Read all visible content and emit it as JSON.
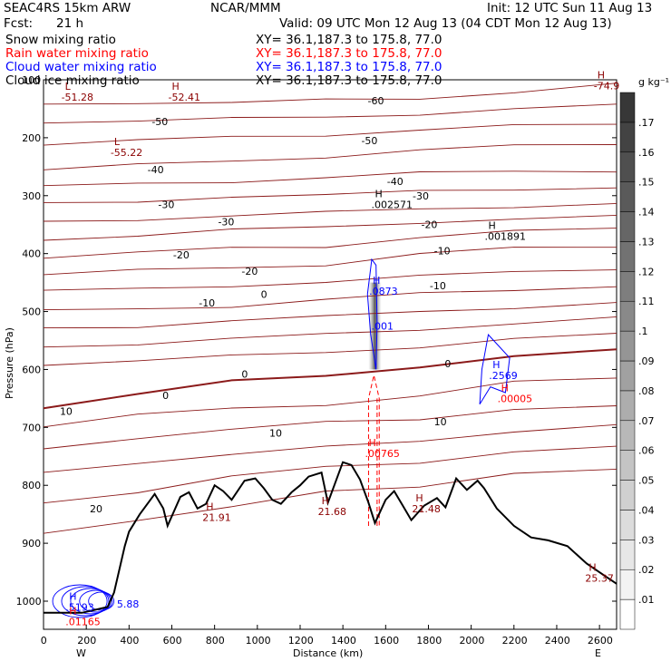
{
  "header": {
    "model": "SEAC4RS 15km ARW",
    "center": "NCAR/MMM",
    "init": "Init: 12 UTC Sun 11 Aug 13",
    "fcst_label": "Fcst:",
    "fcst_value": "21 h",
    "valid": "Valid: 09 UTC Mon 12 Aug 13 (04 CDT Mon 12 Aug 13)",
    "fields": [
      {
        "name": "Snow mixing ratio",
        "xy": "XY=   36.1,187.3 to 175.8, 77.0",
        "color": "#000000"
      },
      {
        "name": "Rain water mixing ratio",
        "xy": "XY=   36.1,187.3 to 175.8, 77.0",
        "color": "#ff0000"
      },
      {
        "name": "Cloud water mixing ratio",
        "xy": "XY=   36.1,187.3 to 175.8, 77.0",
        "color": "#0000ff"
      },
      {
        "name": "Cloud ice mixing ratio",
        "xy": "XY=   36.1,187.3 to 175.8, 77.0",
        "color": "#000000"
      }
    ]
  },
  "colorbar": {
    "unit": "g kg⁻¹",
    "ticks": [
      ".01",
      ".02",
      ".03",
      ".04",
      ".05",
      ".06",
      ".07",
      ".08",
      ".09",
      ".1",
      ".11",
      ".12",
      ".13",
      ".14",
      ".15",
      ".16",
      ".17"
    ]
  },
  "chart_data": {
    "type": "contour-cross-section",
    "xlabel": "Distance (km)",
    "ylabel": "Pressure (hPa)",
    "xlim": [
      0,
      2680
    ],
    "ylim": [
      1050,
      100
    ],
    "x_ticks": [
      "0",
      "200",
      "400",
      "600",
      "800",
      "1000",
      "1200",
      "1400",
      "1600",
      "1800",
      "2000",
      "2200",
      "2400",
      "2600"
    ],
    "y_ticks": [
      "100",
      "200",
      "300",
      "400",
      "500",
      "600",
      "700",
      "800",
      "900",
      "1000"
    ],
    "end_labels": {
      "left": "W",
      "right": "E"
    },
    "temperature_contour_labels": [
      "-60",
      "-50",
      "-50",
      "-40",
      "-40",
      "-30",
      "-30",
      "-30",
      "-20",
      "-20",
      "-20",
      "-10",
      "-10",
      "-10",
      "0",
      "0",
      "0",
      "0",
      "10",
      "10",
      "10",
      "20"
    ],
    "extrema": [
      {
        "sym": "H",
        "value": "-74.9",
        "x": 2590,
        "p": 110,
        "color": "#8b0000"
      },
      {
        "sym": "L",
        "value": "-51.28",
        "x": 100,
        "p": 130,
        "color": "#8b0000"
      },
      {
        "sym": "H",
        "value": "-52.41",
        "x": 600,
        "p": 130,
        "color": "#8b0000"
      },
      {
        "sym": "L",
        "value": "-55.22",
        "x": 330,
        "p": 225,
        "color": "#8b0000"
      },
      {
        "sym": "H",
        "value": ".002571",
        "x": 1550,
        "p": 315,
        "color": "#000000"
      },
      {
        "sym": "H",
        "value": ".001891",
        "x": 2080,
        "p": 370,
        "color": "#000000"
      },
      {
        "sym": "H",
        "value": ".0873",
        "x": 1540,
        "p": 465,
        "color": "#0000ff"
      },
      {
        "sym": "",
        "value": ".001",
        "x": 1550,
        "p": 525,
        "color": "#0000ff"
      },
      {
        "sym": "H",
        "value": ".2569",
        "x": 2100,
        "p": 610,
        "color": "#0000ff"
      },
      {
        "sym": "H",
        "value": ".00005",
        "x": 2140,
        "p": 650,
        "color": "#ff0000"
      },
      {
        "sym": "H",
        "value": ".00765",
        "x": 1520,
        "p": 745,
        "color": "#ff0000"
      },
      {
        "sym": "H",
        "value": "21.91",
        "x": 760,
        "p": 855,
        "color": "#8b0000"
      },
      {
        "sym": "H",
        "value": "21.68",
        "x": 1300,
        "p": 845,
        "color": "#8b0000"
      },
      {
        "sym": "H",
        "value": "21.48",
        "x": 1740,
        "p": 840,
        "color": "#8b0000"
      },
      {
        "sym": "H",
        "value": "25.37",
        "x": 2550,
        "p": 960,
        "color": "#8b0000"
      },
      {
        "sym": "H",
        "value": ".5193",
        "x": 120,
        "p": 1010,
        "color": "#0000ff"
      },
      {
        "sym": "",
        "value": "5.88",
        "x": 360,
        "p": 1005,
        "color": "#0000ff"
      },
      {
        "sym": "H",
        "value": ".01165",
        "x": 120,
        "p": 1035,
        "color": "#ff0000"
      }
    ],
    "terrain_surface_hpa": [
      [
        0,
        1020
      ],
      [
        180,
        1020
      ],
      [
        300,
        1010
      ],
      [
        330,
        985
      ],
      [
        380,
        905
      ],
      [
        400,
        880
      ],
      [
        450,
        850
      ],
      [
        520,
        815
      ],
      [
        560,
        840
      ],
      [
        580,
        870
      ],
      [
        640,
        820
      ],
      [
        680,
        812
      ],
      [
        720,
        840
      ],
      [
        760,
        832
      ],
      [
        800,
        800
      ],
      [
        840,
        810
      ],
      [
        880,
        825
      ],
      [
        940,
        792
      ],
      [
        990,
        788
      ],
      [
        1030,
        805
      ],
      [
        1070,
        825
      ],
      [
        1110,
        832
      ],
      [
        1160,
        812
      ],
      [
        1200,
        800
      ],
      [
        1240,
        785
      ],
      [
        1300,
        778
      ],
      [
        1330,
        830
      ],
      [
        1360,
        800
      ],
      [
        1400,
        760
      ],
      [
        1440,
        765
      ],
      [
        1480,
        790
      ],
      [
        1520,
        830
      ],
      [
        1550,
        865
      ],
      [
        1600,
        825
      ],
      [
        1640,
        810
      ],
      [
        1680,
        835
      ],
      [
        1720,
        860
      ],
      [
        1780,
        835
      ],
      [
        1840,
        822
      ],
      [
        1880,
        838
      ],
      [
        1930,
        788
      ],
      [
        1980,
        808
      ],
      [
        2030,
        792
      ],
      [
        2060,
        805
      ],
      [
        2120,
        840
      ],
      [
        2200,
        870
      ],
      [
        2280,
        890
      ],
      [
        2360,
        895
      ],
      [
        2450,
        905
      ],
      [
        2540,
        935
      ],
      [
        2600,
        950
      ],
      [
        2680,
        970
      ]
    ],
    "isotherms": [
      {
        "t": -60,
        "p": [
          142,
          138,
          140,
          136,
          132,
          120,
          108
        ]
      },
      {
        "t": -50,
        "p": [
          172,
          170,
          168,
          165,
          158,
          150,
          145
        ]
      },
      {
        "t": -50,
        "p": [
          210,
          205,
          200,
          195,
          185,
          180,
          178
        ]
      },
      {
        "t": -40,
        "p": [
          255,
          248,
          240,
          232,
          222,
          215,
          210
        ]
      },
      {
        "t": -40,
        "p": [
          285,
          280,
          275,
          268,
          262,
          258,
          256
        ]
      },
      {
        "t": -30,
        "p": [
          315,
          310,
          300,
          300,
          293,
          288,
          285
        ]
      },
      {
        "t": -30,
        "p": [
          345,
          340,
          335,
          330,
          322,
          318,
          315
        ]
      },
      {
        "t": -30,
        "p": [
          375,
          368,
          360,
          355,
          345,
          340,
          337
        ]
      },
      {
        "t": -20,
        "p": [
          405,
          398,
          392,
          388,
          370,
          362,
          358
        ]
      },
      {
        "t": -20,
        "p": [
          435,
          430,
          425,
          418,
          400,
          392,
          388
        ]
      },
      {
        "t": -20,
        "p": [
          465,
          462,
          455,
          448,
          440,
          432,
          425
        ]
      },
      {
        "t": -10,
        "p": [
          500,
          495,
          490,
          480,
          470,
          462,
          455
        ]
      },
      {
        "t": -10,
        "p": [
          530,
          525,
          515,
          510,
          500,
          492,
          485
        ]
      },
      {
        "t": -10,
        "p": [
          560,
          555,
          548,
          540,
          530,
          520,
          512
        ]
      },
      {
        "t": -5,
        "p": [
          590,
          585,
          578,
          570,
          560,
          548,
          540
        ]
      },
      {
        "t": 0,
        "p": [
          665,
          645,
          620,
          608,
          596,
          580,
          565
        ]
      },
      {
        "t": 5,
        "p": [
          700,
          680,
          665,
          660,
          648,
          622,
          612
        ]
      },
      {
        "t": 10,
        "p": [
          740,
          720,
          700,
          690,
          690,
          668,
          660
        ]
      },
      {
        "t": 15,
        "p": [
          780,
          760,
          745,
          735,
          725,
          705,
          695
        ]
      },
      {
        "t": 20,
        "p": [
          830,
          810,
          785,
          770,
          760,
          740,
          735
        ]
      },
      {
        "t": 25,
        "p": [
          880,
          860,
          840,
          810,
          800,
          780,
          775
        ]
      }
    ],
    "isotherm_x": [
      0,
      440,
      880,
      1320,
      1760,
      2200,
      2680
    ]
  }
}
